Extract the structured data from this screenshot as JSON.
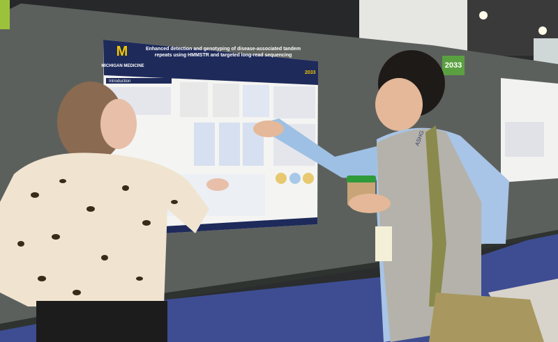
{
  "poster": {
    "logo": "M",
    "logo_text": "MICHIGAN MEDICINE",
    "title": "Enhanced detection and genotyping of disease-associated tandem repeats using HMMSTR and targeted long-read sequencing",
    "section": "Introduction",
    "number": "2033"
  },
  "sign": {
    "number": "2033"
  },
  "lanyard": {
    "text": "ASHG"
  }
}
